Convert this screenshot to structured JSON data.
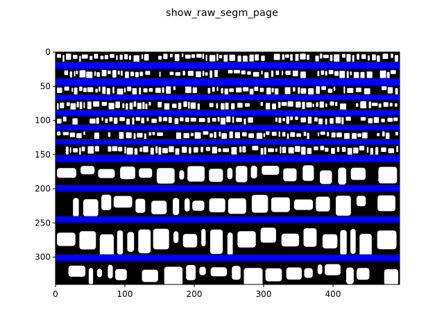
{
  "chart_data": {
    "type": "image",
    "title": "show_raw_segm_page",
    "xlabel": "",
    "ylabel": "",
    "xlim": [
      0,
      496
    ],
    "ylim": [
      340,
      0
    ],
    "x_ticks": [
      0,
      100,
      200,
      300,
      400
    ],
    "y_ticks": [
      0,
      50,
      100,
      150,
      200,
      250,
      300
    ],
    "grid": false,
    "legend": "none",
    "segment_separators": [
      {
        "y_start": 14,
        "y_end": 24
      },
      {
        "y_start": 38,
        "y_end": 48
      },
      {
        "y_start": 62,
        "y_end": 70
      },
      {
        "y_start": 84,
        "y_end": 92
      },
      {
        "y_start": 106,
        "y_end": 114
      },
      {
        "y_start": 127,
        "y_end": 135
      },
      {
        "y_start": 150,
        "y_end": 160
      },
      {
        "y_start": 194,
        "y_end": 203
      },
      {
        "y_start": 240,
        "y_end": 249
      },
      {
        "y_start": 296,
        "y_end": 305
      }
    ],
    "image_background": "#000000",
    "ink_color": "#ffffff",
    "separator_color": "#0000ff"
  }
}
